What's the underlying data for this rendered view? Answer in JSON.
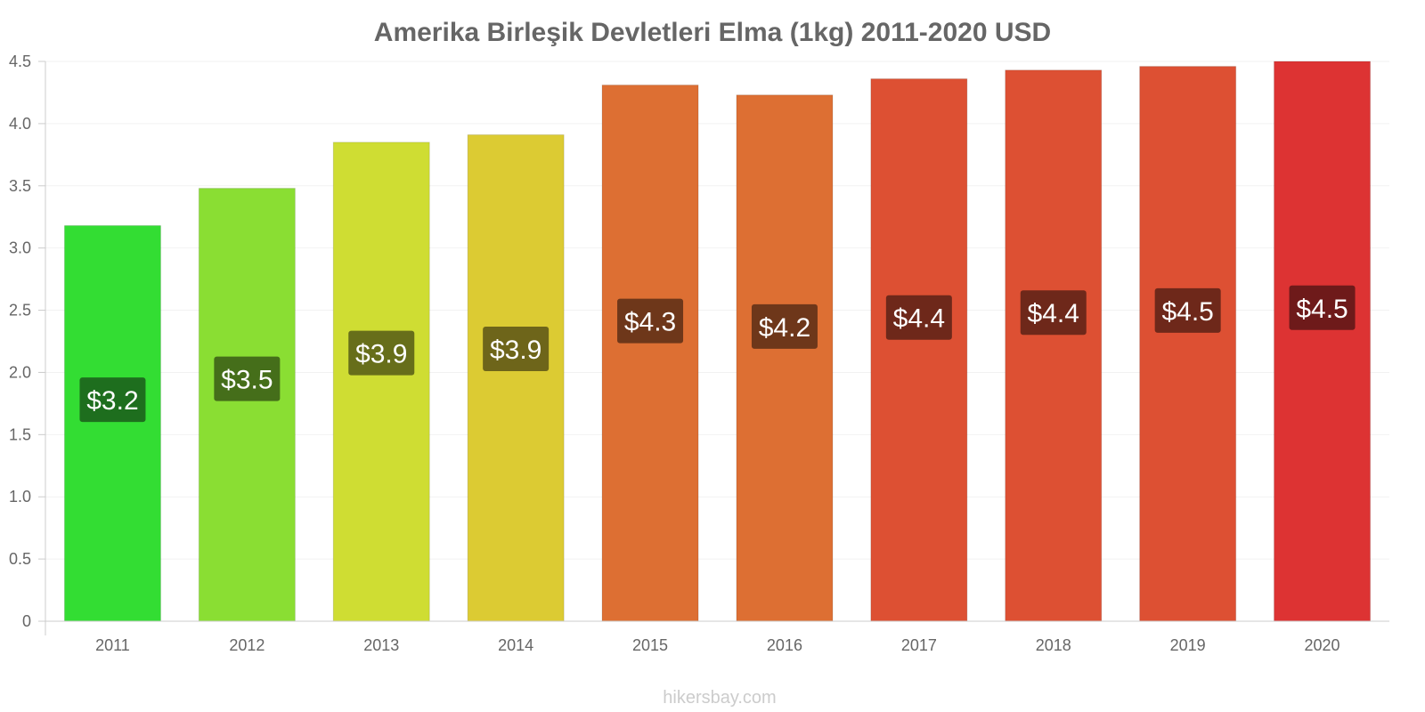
{
  "chart_data": {
    "type": "bar",
    "title": "Amerika Birleşik Devletleri Elma (1kg) 2011-2020 USD",
    "xlabel": "",
    "ylabel": "",
    "ylim": [
      0,
      4.5
    ],
    "yticks": [
      "0",
      "0.5",
      "1.0",
      "1.5",
      "2.0",
      "2.5",
      "3.0",
      "3.5",
      "4.0",
      "4.5"
    ],
    "categories": [
      "2011",
      "2012",
      "2013",
      "2014",
      "2015",
      "2016",
      "2017",
      "2018",
      "2019",
      "2020"
    ],
    "values": [
      3.18,
      3.48,
      3.85,
      3.91,
      4.31,
      4.23,
      4.36,
      4.43,
      4.46,
      4.5
    ],
    "data_labels": [
      "$3.2",
      "$3.5",
      "$3.9",
      "$3.9",
      "$4.3",
      "$4.2",
      "$4.4",
      "$4.4",
      "$4.5",
      "$4.5"
    ],
    "colors": [
      "#33dd33",
      "#8ade33",
      "#cfdd33",
      "#dccb33",
      "#dd6f33",
      "#dd6f33",
      "#dd5033",
      "#dd5033",
      "#dd5033",
      "#dd3333"
    ],
    "label_colors": [
      "#1e6e1e",
      "#456e1a",
      "#676e1a",
      "#6e651a",
      "#6e371a",
      "#6e371a",
      "#6e281a",
      "#6e281a",
      "#6e281a",
      "#6e1a1a"
    ],
    "grid": true,
    "watermark": "hikersbay.com"
  }
}
